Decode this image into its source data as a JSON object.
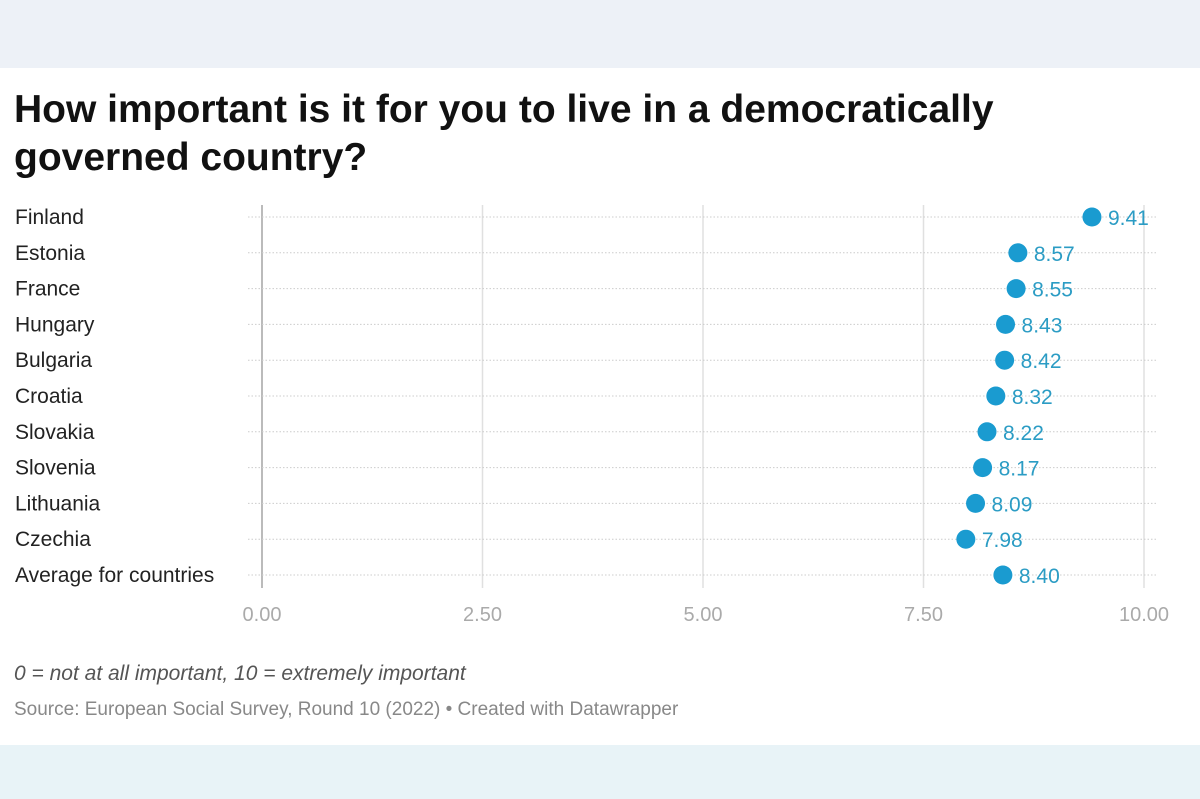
{
  "chart_data": {
    "type": "scatter",
    "title": "How important is it for you to live in a democratically governed country?",
    "categories": [
      "Finland",
      "Estonia",
      "France",
      "Hungary",
      "Bulgaria",
      "Croatia",
      "Slovakia",
      "Slovenia",
      "Lithuania",
      "Czechia",
      "Average for countries"
    ],
    "values": [
      9.41,
      8.57,
      8.55,
      8.43,
      8.42,
      8.32,
      8.22,
      8.17,
      8.09,
      7.98,
      8.4
    ],
    "value_labels": [
      "9.41",
      "8.57",
      "8.55",
      "8.43",
      "8.42",
      "8.32",
      "8.22",
      "8.17",
      "8.09",
      "7.98",
      "8.40"
    ],
    "xlim": [
      0,
      10
    ],
    "xticks": [
      0,
      2.5,
      5,
      7.5,
      10
    ],
    "xtick_labels": [
      "0.00",
      "2.50",
      "5.00",
      "7.50",
      "10.00"
    ],
    "grid": true,
    "xlabel": "",
    "ylabel": ""
  },
  "colors": {
    "dot": "#1a9bd0",
    "label": "#2b9cc4"
  },
  "notes": "0 = not at all important, 10 = extremely important",
  "source": "Source: European Social Survey, Round 10 (2022) • Created with Datawrapper"
}
